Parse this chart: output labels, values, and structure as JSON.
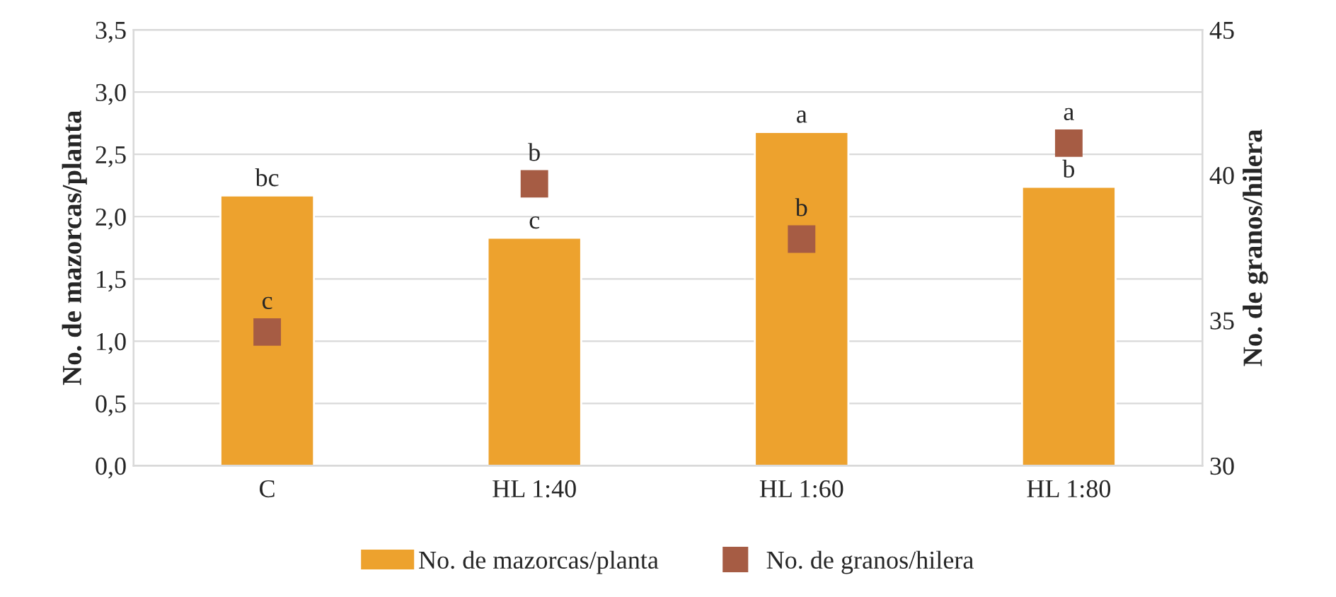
{
  "chart_data": {
    "type": "bar",
    "categories": [
      "C",
      "HL 1:40",
      "HL 1:60",
      "HL 1:80"
    ],
    "ylabel": "No. de mazorcas/planta",
    "y2label": "No. de granos/hilera",
    "series": [
      {
        "name": "No. de mazorcas/planta",
        "color": "#eda22e",
        "values": [
          2.17,
          1.83,
          2.68,
          2.24
        ],
        "value_labels": [
          "bc",
          "c",
          "a",
          "b"
        ]
      },
      {
        "name": "No. de granos/hilera",
        "type": "scatter",
        "axis": "y2",
        "marker": "square",
        "color": "#a65c44",
        "values": [
          34.6,
          39.7,
          37.8,
          41.1
        ],
        "value_labels": [
          "c",
          "b",
          "b",
          "a"
        ]
      }
    ],
    "ylim": [
      0,
      3.5
    ],
    "yticks": [
      {
        "value": 0,
        "label": "0,0"
      },
      {
        "value": 0.5,
        "label": "0,5"
      },
      {
        "value": 1,
        "label": "1,0"
      },
      {
        "value": 1.5,
        "label": "1,5"
      },
      {
        "value": 2,
        "label": "2,0"
      },
      {
        "value": 2.5,
        "label": "2,5"
      },
      {
        "value": 3,
        "label": "3,0"
      },
      {
        "value": 3.5,
        "label": "3,5"
      }
    ],
    "y2lim": [
      30,
      45
    ],
    "y2ticks": [
      30,
      35,
      40,
      45
    ],
    "grid": "y",
    "legend": "bottom"
  }
}
